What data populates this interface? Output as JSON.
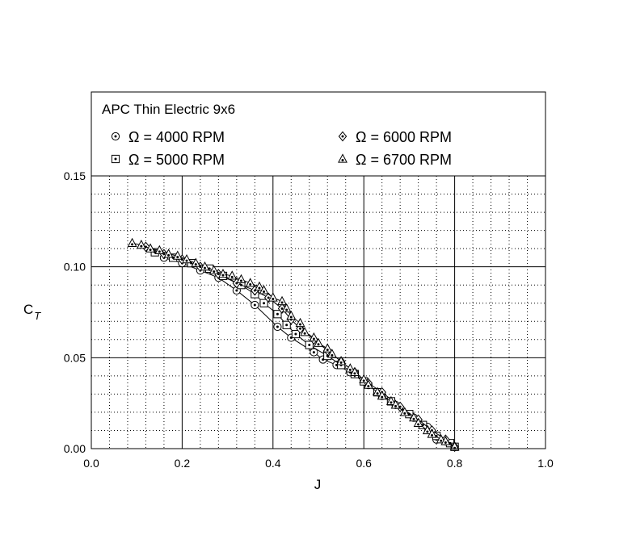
{
  "chart_data": {
    "type": "scatter",
    "title": "APC Thin Electric 9x6",
    "xlabel": "J",
    "ylabel": "C",
    "ylabel_sub": "T",
    "xlim": [
      0.0,
      1.0
    ],
    "ylim": [
      0.0,
      0.15
    ],
    "x_ticks": [
      "0.0",
      "0.2",
      "0.4",
      "0.6",
      "0.8",
      "1.0"
    ],
    "y_ticks": [
      "0.00",
      "0.05",
      "0.10",
      "0.15"
    ],
    "grid": true,
    "minor_grid": true,
    "legend_position": "top (above plot area)",
    "marker_line": "connected markers",
    "series": [
      {
        "name": "Ω = 4000 RPM",
        "marker": "circle-dot",
        "points": [
          [
            0.16,
            0.105
          ],
          [
            0.2,
            0.102
          ],
          [
            0.24,
            0.098
          ],
          [
            0.28,
            0.094
          ],
          [
            0.32,
            0.087
          ],
          [
            0.36,
            0.079
          ],
          [
            0.41,
            0.067
          ],
          [
            0.44,
            0.061
          ],
          [
            0.49,
            0.053
          ],
          [
            0.51,
            0.049
          ],
          [
            0.54,
            0.046
          ],
          [
            0.57,
            0.042
          ],
          [
            0.61,
            0.035
          ],
          [
            0.64,
            0.029
          ],
          [
            0.67,
            0.024
          ],
          [
            0.71,
            0.017
          ],
          [
            0.74,
            0.012
          ],
          [
            0.76,
            0.005
          ],
          [
            0.78,
            0.004
          ],
          [
            0.8,
            0.001
          ]
        ]
      },
      {
        "name": "Ω = 5000 RPM",
        "marker": "square-dot",
        "points": [
          [
            0.14,
            0.108
          ],
          [
            0.18,
            0.105
          ],
          [
            0.22,
            0.102
          ],
          [
            0.26,
            0.099
          ],
          [
            0.29,
            0.095
          ],
          [
            0.33,
            0.09
          ],
          [
            0.36,
            0.085
          ],
          [
            0.38,
            0.08
          ],
          [
            0.41,
            0.074
          ],
          [
            0.43,
            0.068
          ],
          [
            0.45,
            0.063
          ],
          [
            0.48,
            0.057
          ],
          [
            0.52,
            0.051
          ],
          [
            0.55,
            0.046
          ],
          [
            0.58,
            0.041
          ],
          [
            0.6,
            0.037
          ],
          [
            0.63,
            0.031
          ],
          [
            0.66,
            0.026
          ],
          [
            0.7,
            0.019
          ],
          [
            0.73,
            0.013
          ],
          [
            0.76,
            0.007
          ],
          [
            0.79,
            0.003
          ],
          [
            0.8,
            0.001
          ]
        ]
      },
      {
        "name": "Ω = 6000 RPM",
        "marker": "diamond-dot",
        "points": [
          [
            0.12,
            0.111
          ],
          [
            0.16,
            0.107
          ],
          [
            0.2,
            0.104
          ],
          [
            0.24,
            0.1
          ],
          [
            0.28,
            0.096
          ],
          [
            0.32,
            0.091
          ],
          [
            0.36,
            0.087
          ],
          [
            0.39,
            0.083
          ],
          [
            0.42,
            0.077
          ],
          [
            0.44,
            0.071
          ],
          [
            0.46,
            0.066
          ],
          [
            0.49,
            0.06
          ],
          [
            0.52,
            0.054
          ],
          [
            0.55,
            0.048
          ],
          [
            0.58,
            0.042
          ],
          [
            0.61,
            0.036
          ],
          [
            0.64,
            0.031
          ],
          [
            0.68,
            0.023
          ],
          [
            0.72,
            0.016
          ],
          [
            0.75,
            0.01
          ],
          [
            0.78,
            0.005
          ],
          [
            0.8,
            0.001
          ]
        ]
      },
      {
        "name": "Ω = 6700 RPM",
        "marker": "triangle-dot",
        "points": [
          [
            0.09,
            0.113
          ],
          [
            0.11,
            0.112
          ],
          [
            0.13,
            0.11
          ],
          [
            0.15,
            0.109
          ],
          [
            0.17,
            0.107
          ],
          [
            0.19,
            0.106
          ],
          [
            0.21,
            0.104
          ],
          [
            0.23,
            0.102
          ],
          [
            0.25,
            0.1
          ],
          [
            0.27,
            0.098
          ],
          [
            0.29,
            0.096
          ],
          [
            0.31,
            0.095
          ],
          [
            0.33,
            0.093
          ],
          [
            0.35,
            0.091
          ],
          [
            0.37,
            0.089
          ],
          [
            0.38,
            0.087
          ],
          [
            0.4,
            0.083
          ],
          [
            0.42,
            0.081
          ],
          [
            0.43,
            0.077
          ],
          [
            0.44,
            0.073
          ],
          [
            0.46,
            0.069
          ],
          [
            0.47,
            0.064
          ],
          [
            0.49,
            0.061
          ],
          [
            0.5,
            0.058
          ],
          [
            0.52,
            0.055
          ],
          [
            0.53,
            0.052
          ],
          [
            0.55,
            0.048
          ],
          [
            0.57,
            0.044
          ],
          [
            0.58,
            0.042
          ],
          [
            0.6,
            0.038
          ],
          [
            0.61,
            0.035
          ],
          [
            0.63,
            0.031
          ],
          [
            0.64,
            0.029
          ],
          [
            0.66,
            0.026
          ],
          [
            0.67,
            0.024
          ],
          [
            0.69,
            0.02
          ],
          [
            0.71,
            0.017
          ],
          [
            0.72,
            0.014
          ],
          [
            0.74,
            0.01
          ],
          [
            0.75,
            0.008
          ],
          [
            0.77,
            0.005
          ],
          [
            0.78,
            0.004
          ],
          [
            0.8,
            0.001
          ]
        ]
      }
    ]
  }
}
